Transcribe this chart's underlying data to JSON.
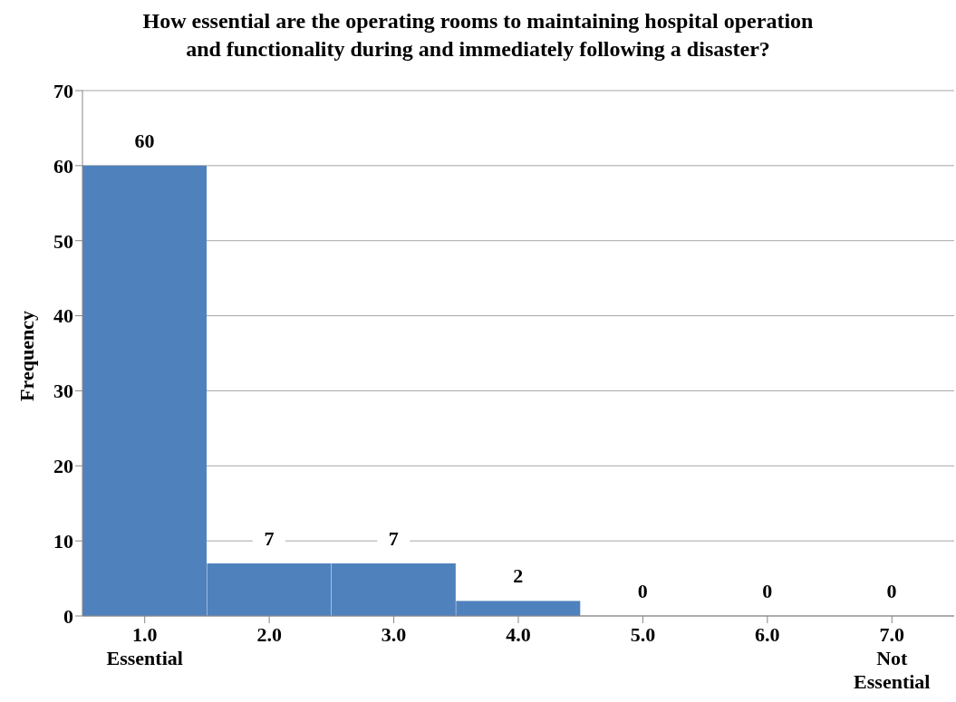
{
  "chart_data": {
    "type": "bar",
    "title": "How essential are the operating rooms to maintaining hospital operation\nand functionality during and immediately following a disaster?",
    "ylabel": "Frequency",
    "categories": [
      "1.0\nEssential",
      "2.0",
      "3.0",
      "4.0",
      "5.0",
      "6.0",
      "7.0\nNot\nEssential"
    ],
    "values": [
      60,
      7,
      7,
      2,
      0,
      0,
      0
    ],
    "color": "#4f81bd",
    "ylim": [
      0,
      70
    ],
    "yticks": [
      0,
      10,
      20,
      30,
      40,
      50,
      60,
      70
    ],
    "grid": "y",
    "data_labels": true
  }
}
